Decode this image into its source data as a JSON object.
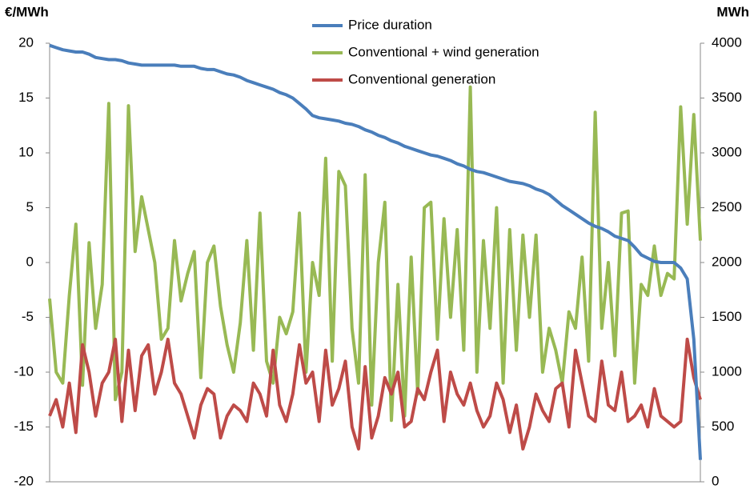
{
  "chart_data": {
    "type": "line",
    "ylabel": "€/MWh",
    "y2label": "MWh",
    "ylim": [
      -20,
      20
    ],
    "yticks": [
      -20,
      -15,
      -10,
      -5,
      0,
      5,
      10,
      15,
      20
    ],
    "y2lim": [
      0,
      4000
    ],
    "y2ticks": [
      0,
      500,
      1000,
      1500,
      2000,
      2500,
      3000,
      3500,
      4000
    ],
    "grid": false,
    "legend": "top",
    "series": [
      {
        "name": "Price duration",
        "color": "#4a7ebb",
        "values": [
          19.8,
          19.6,
          19.4,
          19.3,
          19.2,
          19.2,
          19.0,
          18.7,
          18.6,
          18.5,
          18.5,
          18.4,
          18.2,
          18.1,
          18.0,
          18.0,
          18.0,
          18.0,
          18.0,
          18.0,
          17.9,
          17.9,
          17.9,
          17.7,
          17.6,
          17.6,
          17.4,
          17.2,
          17.1,
          16.9,
          16.6,
          16.4,
          16.2,
          16.0,
          15.8,
          15.5,
          15.3,
          15.0,
          14.5,
          14.0,
          13.4,
          13.2,
          13.1,
          13.0,
          12.9,
          12.7,
          12.6,
          12.4,
          12.1,
          11.9,
          11.6,
          11.4,
          11.1,
          10.9,
          10.6,
          10.4,
          10.2,
          10.0,
          9.8,
          9.7,
          9.5,
          9.3,
          9.0,
          8.8,
          8.5,
          8.3,
          8.2,
          8.0,
          7.8,
          7.6,
          7.4,
          7.3,
          7.2,
          7.0,
          6.7,
          6.5,
          6.2,
          5.7,
          5.2,
          4.8,
          4.4,
          4.0,
          3.6,
          3.3,
          3.1,
          2.8,
          2.4,
          2.2,
          2.0,
          1.4,
          0.7,
          0.4,
          0.1,
          0.0,
          0.0,
          0.0,
          -0.5,
          -1.5,
          -7,
          -18
        ]
      },
      {
        "name": "Conventional + wind generation",
        "color": "#98b954",
        "axis": "y2",
        "values": [
          1670,
          1000,
          900,
          1700,
          2350,
          880,
          2180,
          1400,
          1800,
          3450,
          750,
          1000,
          3430,
          2100,
          2600,
          2300,
          2000,
          1300,
          1400,
          2200,
          1650,
          1900,
          2100,
          950,
          2000,
          2150,
          1600,
          1250,
          1000,
          1450,
          2200,
          1200,
          2450,
          1100,
          900,
          1500,
          1350,
          1550,
          2450,
          1000,
          2000,
          1700,
          2950,
          1100,
          2830,
          2700,
          1400,
          900,
          2800,
          700,
          2000,
          2550,
          560,
          1800,
          600,
          2050,
          800,
          2500,
          2550,
          1300,
          2400,
          1500,
          2300,
          1200,
          3600,
          1000,
          2200,
          1400,
          2500,
          900,
          2300,
          1200,
          2250,
          1500,
          2250,
          1000,
          1400,
          1200,
          900,
          1550,
          1400,
          2050,
          1100,
          3370,
          1400,
          2000,
          1150,
          2450,
          2470,
          900,
          1800,
          1700,
          2150,
          1700,
          1900,
          1850,
          3420,
          2350,
          3350,
          2200
        ]
      },
      {
        "name": "Conventional generation",
        "color": "#be4b48",
        "axis": "y2",
        "values": [
          600,
          750,
          500,
          900,
          450,
          1250,
          1000,
          600,
          900,
          1000,
          1300,
          550,
          1200,
          650,
          1150,
          1250,
          800,
          1000,
          1300,
          900,
          800,
          600,
          400,
          700,
          850,
          800,
          400,
          600,
          700,
          650,
          550,
          900,
          800,
          600,
          1200,
          700,
          550,
          800,
          1250,
          900,
          1000,
          550,
          1200,
          700,
          850,
          1100,
          500,
          300,
          1050,
          400,
          600,
          950,
          800,
          1000,
          500,
          550,
          850,
          750,
          1000,
          1200,
          550,
          1000,
          800,
          700,
          900,
          650,
          500,
          600,
          900,
          750,
          450,
          700,
          300,
          500,
          800,
          650,
          550,
          850,
          900,
          500,
          1200,
          900,
          600,
          550,
          1100,
          700,
          650,
          1000,
          550,
          600,
          700,
          500,
          850,
          600,
          550,
          500,
          550,
          1300,
          950,
          750
        ]
      }
    ]
  }
}
